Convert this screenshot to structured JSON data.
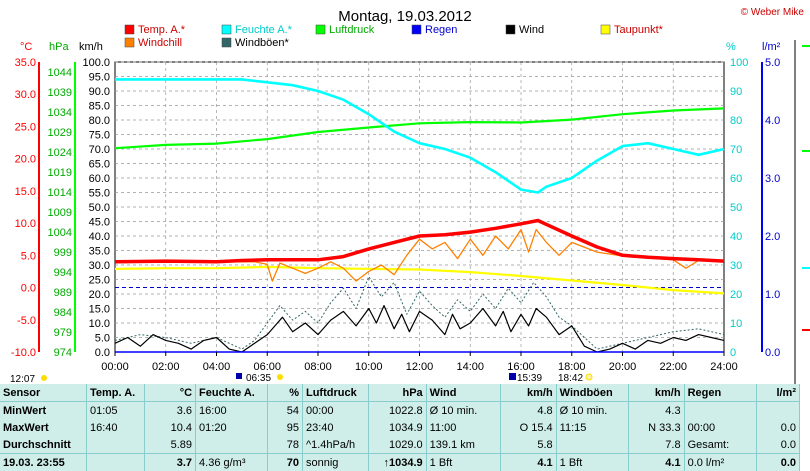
{
  "title": "Montag, 19.03.2012",
  "copyright": "© Weber Mike",
  "units": {
    "temp": "°C",
    "pressure": "hPa",
    "speed": "km/h",
    "percent": "%",
    "rain": "l/m²"
  },
  "legend": [
    {
      "label": "Temp. A.*",
      "color": "#ff0000"
    },
    {
      "label": "Feuchte A.*",
      "color": "#00ffff"
    },
    {
      "label": "Luftdruck",
      "color": "#00ff00"
    },
    {
      "label": "Regen",
      "color": "#0000ff"
    },
    {
      "label": "Wind",
      "color": "#000000"
    },
    {
      "label": "Taupunkt*",
      "color": "#ffff00"
    },
    {
      "label": "Windchill",
      "color": "#ff8000"
    },
    {
      "label": "Windböen*",
      "color": "#336666"
    }
  ],
  "axis_notes": {
    "sunrise": "06:35",
    "sunset": "18:42",
    "left_time": "12:07",
    "peak_marker": "15:39"
  },
  "chart_data": {
    "type": "line",
    "xlabel": "",
    "x": [
      "00:00",
      "02:00",
      "04:00",
      "06:00",
      "08:00",
      "10:00",
      "12:00",
      "14:00",
      "16:00",
      "18:00",
      "20:00",
      "22:00",
      "24:00"
    ],
    "axes": {
      "temp_ticks": [
        "35.0",
        "30.0",
        "25.0",
        "20.0",
        "15.0",
        "10.0",
        "5.0",
        "0.0",
        "-5.0",
        "-10.0"
      ],
      "pressure_ticks": [
        "1044",
        "1039",
        "1034",
        "1029",
        "1024",
        "1019",
        "1014",
        "1009",
        "1004",
        "999",
        "994",
        "989",
        "984",
        "979",
        "974"
      ],
      "speed_ticks": [
        "100.0",
        "95.0",
        "90.0",
        "85.0",
        "80.0",
        "75.0",
        "70.0",
        "65.0",
        "60.0",
        "55.0",
        "50.0",
        "45.0",
        "40.0",
        "35.0",
        "30.0",
        "25.0",
        "20.0",
        "15.0",
        "10.0",
        "5.0",
        "0.0"
      ],
      "percent_ticks": [
        "100",
        "90",
        "80",
        "70",
        "60",
        "50",
        "40",
        "30",
        "20",
        "10",
        "0"
      ],
      "rain_ticks": [
        "5.0",
        "4.0",
        "3.0",
        "2.0",
        "1.0",
        "0.0"
      ]
    },
    "temp_range": [
      -10,
      35
    ],
    "speed_range": [
      0,
      100
    ],
    "percent_range": [
      0,
      100
    ],
    "series": [
      {
        "name": "Temp. A.*",
        "unit": "°C",
        "x": [
          0,
          2,
          4,
          5,
          6,
          7,
          8,
          9,
          10,
          11,
          12,
          13,
          14,
          15,
          16,
          16.67,
          17,
          18,
          19,
          20,
          21,
          22,
          23,
          24
        ],
        "values": [
          4.0,
          4.1,
          4.0,
          4.2,
          4.3,
          4.3,
          4.3,
          4.8,
          6.0,
          7.0,
          8.0,
          8.2,
          8.6,
          9.2,
          9.9,
          10.4,
          9.8,
          8.0,
          6.3,
          5.0,
          4.7,
          4.5,
          4.3,
          4.1
        ]
      },
      {
        "name": "Feuchte A.*",
        "unit": "%",
        "x": [
          0,
          2,
          4,
          5,
          6,
          7,
          8,
          9,
          10,
          11,
          12,
          13,
          14,
          15,
          16,
          16.67,
          17,
          18,
          19,
          20,
          21,
          22,
          23,
          24
        ],
        "values": [
          94,
          94,
          94,
          94,
          93,
          92,
          90,
          87,
          82,
          76,
          72,
          70,
          67,
          62,
          56,
          55,
          57,
          60,
          66,
          71,
          72,
          70,
          68,
          70
        ]
      },
      {
        "name": "Luftdruck",
        "unit": "hPa",
        "x": [
          0,
          2,
          4,
          6,
          8,
          10,
          12,
          14,
          16,
          18,
          20,
          22,
          24
        ],
        "values": [
          1023.2,
          1024.0,
          1024.3,
          1025.4,
          1027.1,
          1028.2,
          1029.2,
          1029.5,
          1029.4,
          1030.1,
          1031.4,
          1032.3,
          1032.8
        ]
      },
      {
        "name": "Taupunkt*",
        "unit": "°C",
        "x": [
          0,
          2,
          4,
          6,
          8,
          10,
          12,
          14,
          16,
          18,
          20,
          22,
          24
        ],
        "values": [
          2.9,
          3.0,
          3.0,
          3.2,
          3.0,
          2.9,
          2.8,
          2.4,
          1.8,
          1.1,
          0.4,
          -0.4,
          -0.9
        ]
      },
      {
        "name": "Windchill",
        "unit": "°C",
        "x": [
          0,
          2,
          4,
          5.5,
          6,
          6.2,
          6.5,
          7,
          7.5,
          8,
          8.5,
          9,
          9.5,
          10,
          10.5,
          11,
          11.5,
          12,
          12.5,
          13,
          13.5,
          14,
          14.5,
          15,
          15.5,
          16,
          16.3,
          16.6,
          17,
          17.5,
          18,
          19,
          20,
          21,
          22,
          22.5,
          23,
          24
        ],
        "values": [
          4.0,
          4.1,
          4.0,
          4.0,
          3.6,
          1.0,
          3.8,
          3.0,
          2.2,
          3.0,
          4.0,
          3.0,
          1.0,
          2.5,
          3.5,
          2.0,
          5.0,
          7.5,
          6.0,
          7.0,
          4.5,
          7.5,
          5.0,
          8.0,
          6.0,
          9.0,
          5.5,
          9.0,
          7.0,
          5.0,
          7.0,
          5.5,
          4.9,
          4.6,
          4.3,
          3.0,
          4.2,
          4.0
        ]
      },
      {
        "name": "Wind",
        "unit": "km/h",
        "x": [
          0,
          0.5,
          1,
          1.5,
          2,
          2.5,
          3,
          3.5,
          4,
          4.5,
          5,
          5.5,
          6,
          6.3,
          6.6,
          7,
          7.5,
          8,
          8.5,
          9,
          9.5,
          10,
          10.3,
          10.6,
          11,
          11.3,
          11.6,
          12,
          12.5,
          13,
          13.3,
          13.6,
          14,
          14.5,
          15,
          15.3,
          15.6,
          16,
          16.3,
          16.6,
          17,
          17.5,
          18,
          18.5,
          19,
          19.5,
          20,
          20.5,
          21,
          21.5,
          22,
          22.5,
          23,
          23.5,
          24
        ],
        "values": [
          3,
          5,
          2,
          6,
          4,
          3,
          1,
          4,
          5,
          1,
          0,
          3,
          6,
          9,
          12,
          7,
          10,
          6,
          11,
          14,
          9,
          15,
          10,
          16,
          8,
          13,
          7,
          14,
          11,
          6,
          13,
          8,
          10,
          15,
          9,
          14,
          7,
          13,
          9,
          15,
          12,
          6,
          9,
          2,
          0,
          1,
          3,
          1,
          4,
          3,
          5,
          4,
          6,
          5,
          4
        ]
      },
      {
        "name": "Windböen*",
        "unit": "km/h",
        "x": [
          0,
          1,
          2,
          3,
          4,
          5,
          5.5,
          6,
          6.5,
          7,
          7.5,
          8,
          8.5,
          9,
          9.5,
          10,
          10.5,
          11,
          11.5,
          12,
          12.5,
          13,
          13.5,
          14,
          14.5,
          15,
          15.5,
          16,
          16.5,
          17,
          17.5,
          18,
          19,
          20,
          21,
          22,
          23,
          24
        ],
        "values": [
          4,
          6,
          5,
          3,
          5,
          1,
          4,
          10,
          16,
          11,
          14,
          10,
          17,
          22,
          15,
          26,
          19,
          24,
          13,
          21,
          16,
          12,
          18,
          14,
          20,
          15,
          22,
          17,
          24,
          19,
          12,
          9,
          1,
          3,
          5,
          7,
          8,
          6
        ]
      },
      {
        "name": "Regen",
        "unit": "l/m²",
        "x": [
          0,
          24
        ],
        "values": [
          0,
          0
        ]
      }
    ]
  },
  "stats": {
    "headers": [
      "Sensor",
      "Temp. A.",
      "°C",
      "Feuchte A.",
      "%",
      "Luftdruck",
      "hPa",
      "Wind",
      "km/h",
      "Windböen",
      "km/h",
      "Regen",
      "l/m²"
    ],
    "rows": [
      [
        "MinWert",
        "01:05",
        "3.6",
        "16:00",
        "54",
        "00:00",
        "1022.8",
        "Ø 10 min.",
        "4.8",
        "Ø 10 min.",
        "4.3",
        "",
        ""
      ],
      [
        "MaxWert",
        "16:40",
        "10.4",
        "01:20",
        "95",
        "23:40",
        "1034.9",
        "11:00",
        "O 15.4",
        "11:15",
        "N 33.3",
        "00:00",
        "0.0"
      ],
      [
        "Durchschnitt",
        "",
        "5.89",
        "",
        "78",
        "^1.4hPa/h",
        "1029.0",
        "139.1 km",
        "5.8",
        "",
        "7.8",
        "Gesamt:",
        "0.0"
      ],
      [
        "19.03. 23:55",
        "",
        "3.7",
        "4.36 g/m³",
        "70",
        "sonnig",
        "↑1034.9",
        "1 Bft",
        "4.1",
        "1 Bft",
        "4.1",
        "0.0 l/m²",
        "0.0"
      ]
    ]
  }
}
